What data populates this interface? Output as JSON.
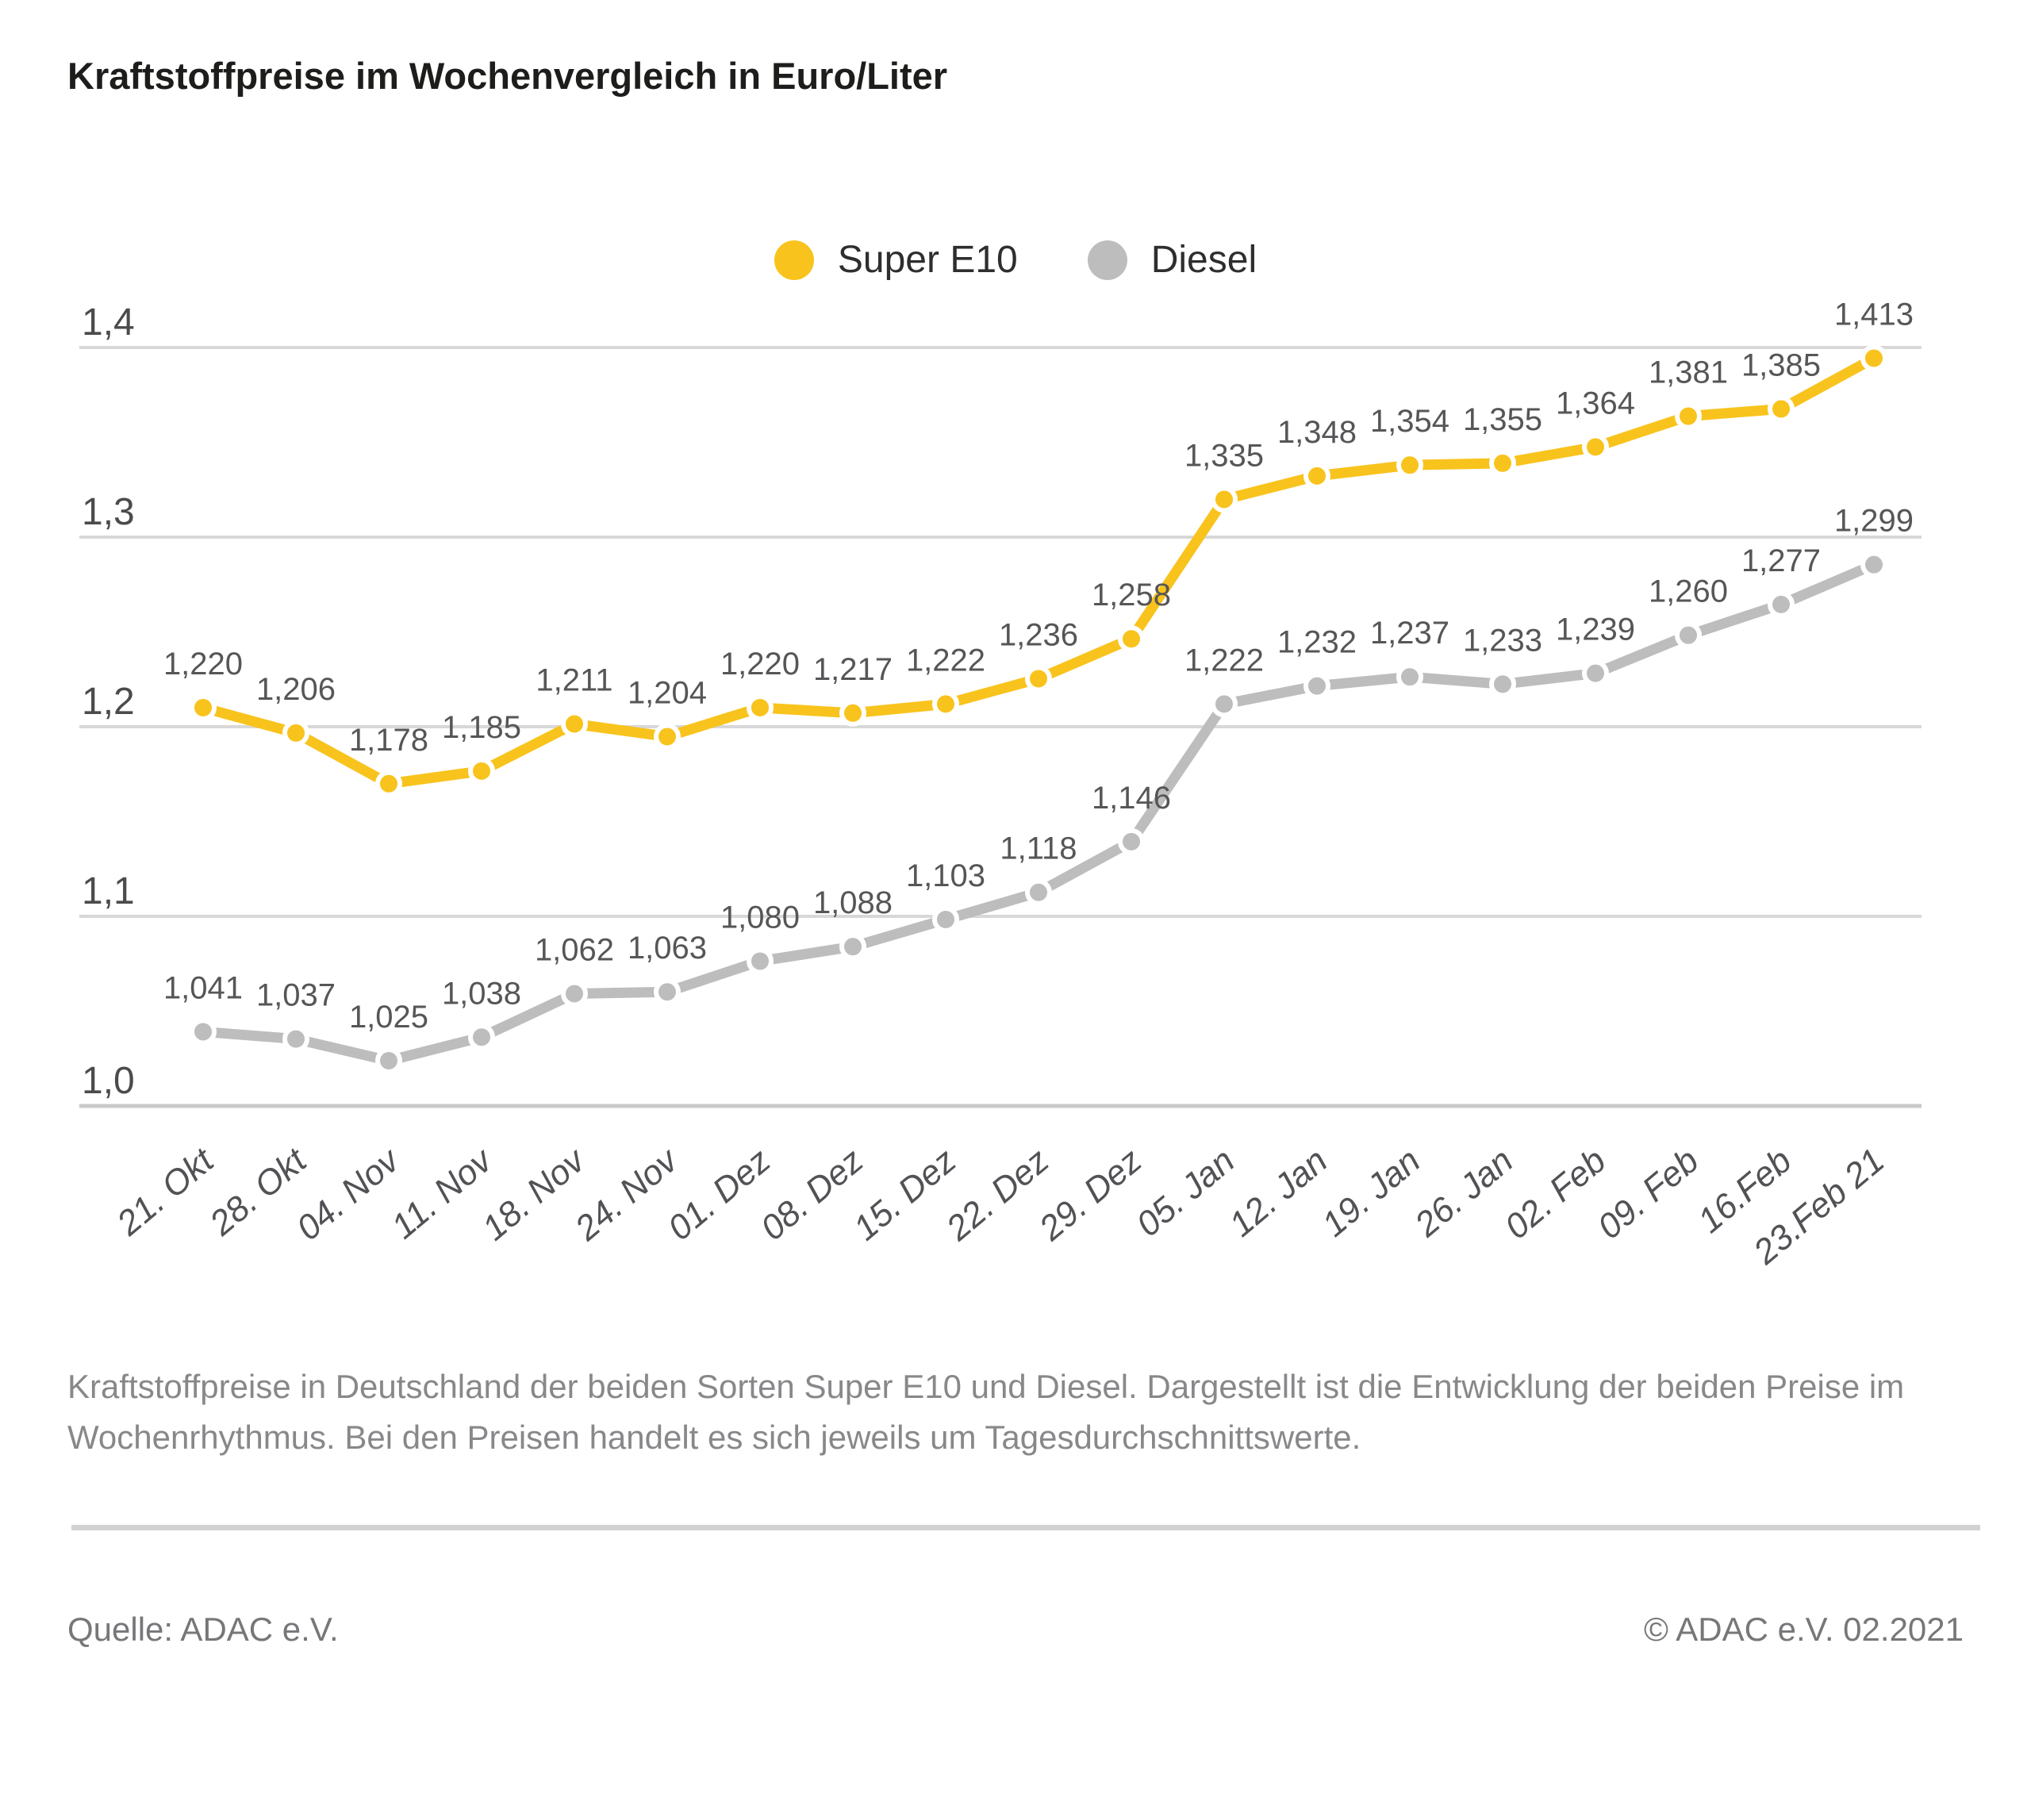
{
  "title": "Kraftstoffpreise im Wochenvergleich in Euro/Liter",
  "legend": {
    "items": [
      {
        "label": "Super E10",
        "color": "#F8C31C"
      },
      {
        "label": "Diesel",
        "color": "#BDBDBD"
      }
    ]
  },
  "chart_data": {
    "type": "line",
    "title": "Kraftstoffpreise im Wochenvergleich in Euro/Liter",
    "xlabel": "",
    "ylabel": "Euro/Liter",
    "categories": [
      "21. Okt",
      "28. Okt",
      "04. Nov",
      "11. Nov",
      "18. Nov",
      "24. Nov",
      "01. Dez",
      "08. Dez",
      "15. Dez",
      "22. Dez",
      "29. Dez",
      "05. Jan",
      "12. Jan",
      "19. Jan",
      "26. Jan",
      "02. Feb",
      "09. Feb",
      "16.Feb",
      "23.Feb 21"
    ],
    "series": [
      {
        "name": "Super E10",
        "color": "#F8C31C",
        "values": [
          1.22,
          1.206,
          1.178,
          1.185,
          1.211,
          1.204,
          1.22,
          1.217,
          1.222,
          1.236,
          1.258,
          1.335,
          1.348,
          1.354,
          1.355,
          1.364,
          1.381,
          1.385,
          1.413
        ]
      },
      {
        "name": "Diesel",
        "color": "#BDBDBD",
        "values": [
          1.041,
          1.037,
          1.025,
          1.038,
          1.062,
          1.063,
          1.08,
          1.088,
          1.103,
          1.118,
          1.146,
          1.222,
          1.232,
          1.237,
          1.233,
          1.239,
          1.26,
          1.277,
          1.299
        ]
      }
    ],
    "yticks": [
      1.4,
      1.3,
      1.2,
      1.1,
      1.0
    ],
    "ylim": [
      1.0,
      1.44
    ],
    "grid": true,
    "legend_position": "top-center",
    "point_labels": true,
    "decimal_separator": ","
  },
  "caption": "Kraftstoffpreise in Deutschland der beiden Sorten Super E10 und Diesel. Dargestellt ist die Entwicklung der beiden Preise im Wochenrhythmus. Bei den Preisen handelt es sich jeweils um Tagesdurchschnittswerte.",
  "footer": {
    "source": "Quelle: ADAC e.V.",
    "copyright": "© ADAC e.V. 02.2021"
  }
}
